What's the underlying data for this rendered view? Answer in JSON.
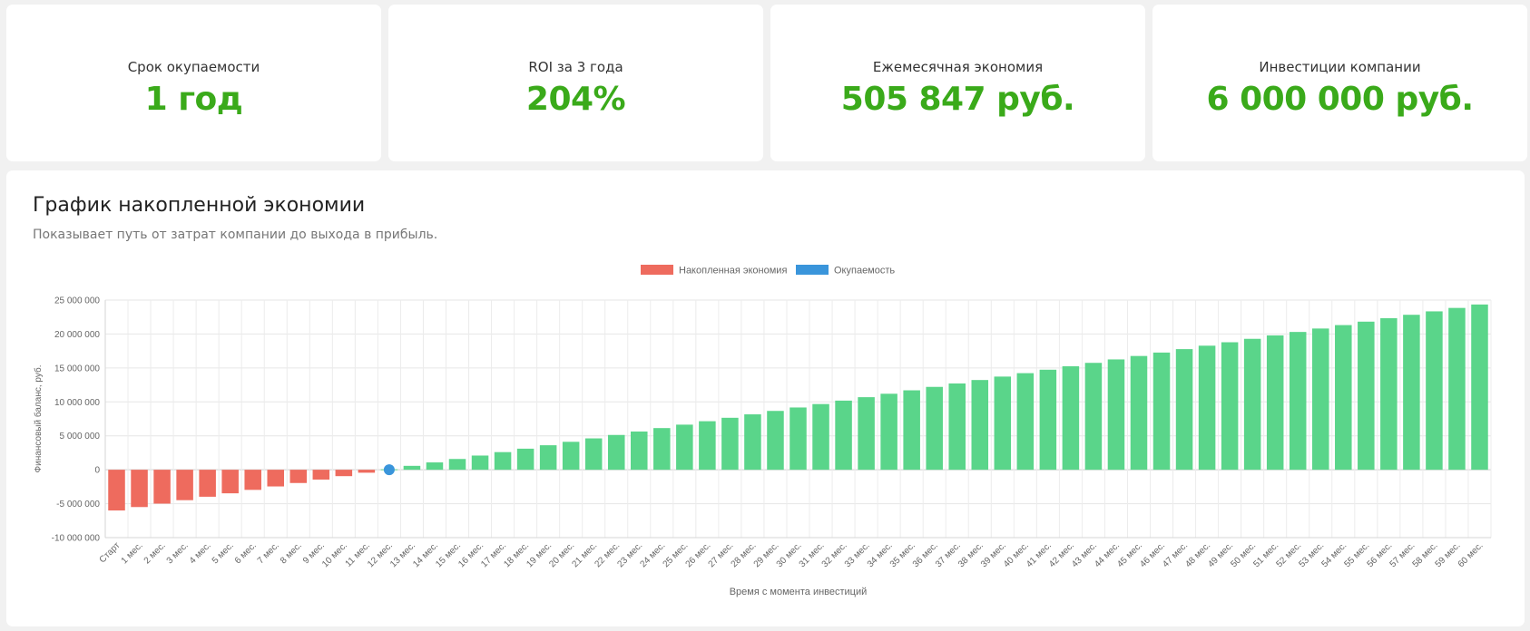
{
  "kpis": [
    {
      "label": "Срок окупаемости",
      "value": "1 год"
    },
    {
      "label": "ROI за 3 года",
      "value": "204%"
    },
    {
      "label": "Ежемесячная экономия",
      "value": "505 847 руб."
    },
    {
      "label": "Инвестиции компании",
      "value": "6 000 000 руб."
    }
  ],
  "chart": {
    "title": "График накопленной экономии",
    "subtitle": "Показывает путь от затрат компании до выхода в прибыль."
  },
  "colors": {
    "negative": "#ee6b5e",
    "positive": "#5ad58a",
    "payback": "#3a95db",
    "accent": "#3aaa1a"
  },
  "chart_data": {
    "type": "bar",
    "categories": [
      "Старт",
      "1 мес.",
      "2 мес.",
      "3 мес.",
      "4 мес.",
      "5 мес.",
      "6 мес.",
      "7 мес.",
      "8 мес.",
      "9 мес.",
      "10 мес.",
      "11 мес.",
      "12 мес.",
      "13 мес.",
      "14 мес.",
      "15 мес.",
      "16 мес.",
      "17 мес.",
      "18 мес.",
      "19 мес.",
      "20 мес.",
      "21 мес.",
      "22 мес.",
      "23 мес.",
      "24 мес.",
      "25 мес.",
      "26 мес.",
      "27 мес.",
      "28 мес.",
      "29 мес.",
      "30 мес.",
      "31 мес.",
      "32 мес.",
      "33 мес.",
      "34 мес.",
      "35 мес.",
      "36 мес.",
      "37 мес.",
      "38 мес.",
      "39 мес.",
      "40 мес.",
      "41 мес.",
      "42 мес.",
      "43 мес.",
      "44 мес.",
      "45 мес.",
      "46 мес.",
      "47 мес.",
      "48 мес.",
      "49 мес.",
      "50 мес.",
      "51 мес.",
      "52 мес.",
      "53 мес.",
      "54 мес.",
      "55 мес.",
      "56 мес.",
      "57 мес.",
      "58 мес.",
      "59 мес.",
      "60 мес."
    ],
    "series": [
      {
        "name": "Накопленная экономия",
        "values": [
          -6000000,
          -5494153,
          -4988306,
          -4482459,
          -3976612,
          -3470765,
          -2964918,
          -2459071,
          -1953224,
          -1447377,
          -941530,
          -435683,
          70164,
          576011,
          1081858,
          1587705,
          2093552,
          2599399,
          3105246,
          3611093,
          4116940,
          4622787,
          5128634,
          5634481,
          6140328,
          6646175,
          7152022,
          7657869,
          8163716,
          8669563,
          9175410,
          9681257,
          10187104,
          10692951,
          11198798,
          11704645,
          12210492,
          12716339,
          13222186,
          13728033,
          14233880,
          14739727,
          15245574,
          15751421,
          16257268,
          16763115,
          17268962,
          17774809,
          18280656,
          18786503,
          19292350,
          19798197,
          20304044,
          20809891,
          21315738,
          21821585,
          22327432,
          22833279,
          23339126,
          23844973,
          24350820
        ]
      },
      {
        "name": "Окупаемость",
        "points": [
          {
            "x": "12 мес.",
            "y": 0
          }
        ]
      }
    ],
    "xlabel": "Время с момента инвестиций",
    "ylabel": "Финансовый баланс, руб.",
    "ylim": [
      -10000000,
      25000000
    ],
    "yticks": [
      "25 000 000",
      "20 000 000",
      "15 000 000",
      "10 000 000",
      "5 000 000",
      "0",
      "-5 000 000",
      "-10 000 000"
    ],
    "ytick_values": [
      25000000,
      20000000,
      15000000,
      10000000,
      5000000,
      0,
      -5000000,
      -10000000
    ],
    "legend": "top-center",
    "grid": true
  }
}
